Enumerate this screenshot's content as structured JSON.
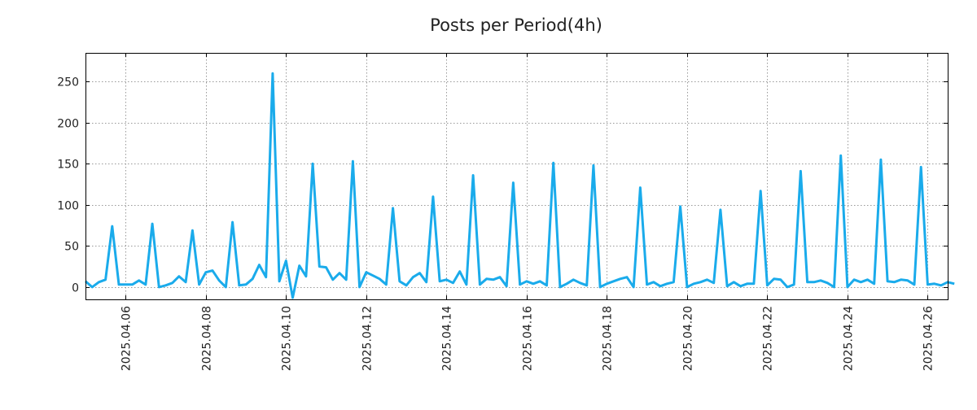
{
  "chart_data": {
    "type": "line",
    "title": "Posts per Period(4h)",
    "xlabel": "",
    "ylabel": "",
    "ylim": [
      -15,
      285
    ],
    "yticks": [
      0,
      50,
      100,
      150,
      200,
      250
    ],
    "xticks": [
      {
        "label": "2025.04.06",
        "day": 1
      },
      {
        "label": "2025.04.08",
        "day": 3
      },
      {
        "label": "2025.04.10",
        "day": 5
      },
      {
        "label": "2025.04.12",
        "day": 7
      },
      {
        "label": "2025.04.14",
        "day": 9
      },
      {
        "label": "2025.04.16",
        "day": 11
      },
      {
        "label": "2025.04.18",
        "day": 13
      },
      {
        "label": "2025.04.20",
        "day": 15
      },
      {
        "label": "2025.04.22",
        "day": 17
      },
      {
        "label": "2025.04.24",
        "day": 19
      },
      {
        "label": "2025.04.26",
        "day": 21
      }
    ],
    "x_unit": "days since 2025.04.05 00:00, 4-hour bins",
    "xlim": [
      0,
      21.5
    ],
    "grid": true,
    "series": [
      {
        "name": "posts",
        "color": "#1aabeb",
        "x_start": 0,
        "x_step": 0.16667,
        "values": [
          7,
          0,
          6,
          9,
          74,
          3,
          3,
          3,
          8,
          3,
          77,
          0,
          2,
          5,
          13,
          6,
          69,
          3,
          18,
          20,
          8,
          0,
          79,
          2,
          3,
          10,
          27,
          12,
          260,
          7,
          32,
          -13,
          26,
          13,
          150,
          25,
          24,
          9,
          17,
          9,
          153,
          0,
          18,
          14,
          10,
          3,
          96,
          7,
          2,
          12,
          17,
          6,
          110,
          7,
          9,
          5,
          19,
          3,
          136,
          3,
          10,
          9,
          12,
          1,
          127,
          3,
          7,
          4,
          7,
          2,
          151,
          0,
          4,
          9,
          5,
          2,
          148,
          0,
          4,
          7,
          10,
          12,
          0,
          121,
          3,
          6,
          1,
          4,
          6,
          98,
          0,
          4,
          6,
          9,
          5,
          94,
          1,
          6,
          1,
          4,
          4,
          117,
          2,
          10,
          9,
          0,
          3,
          141,
          6,
          6,
          8,
          5,
          0,
          160,
          0,
          9,
          6,
          9,
          4,
          155,
          7,
          6,
          9,
          8,
          3,
          146,
          3,
          4,
          2,
          6,
          4
        ]
      }
    ]
  }
}
